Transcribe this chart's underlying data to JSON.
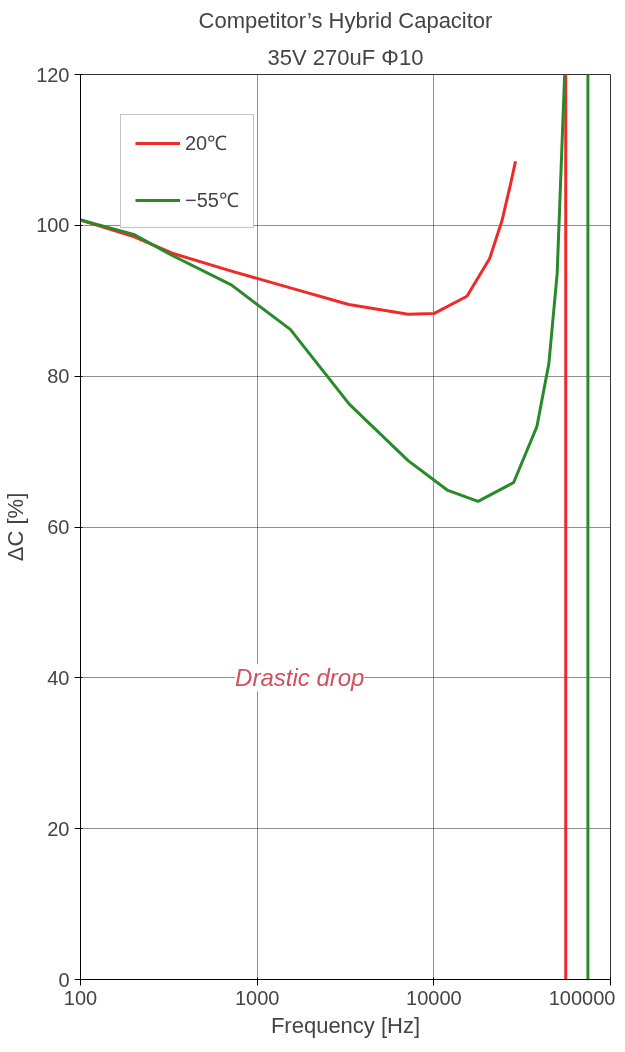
{
  "chart_data": {
    "type": "line",
    "title": "Competitor’s Hybrid Capacitor",
    "subtitle": "35V 270uF Φ10",
    "xlabel": "Frequency [Hz]",
    "ylabel": "ΔC [%]",
    "log": "x",
    "xlim": [
      100,
      100000
    ],
    "xticks": [
      100,
      1000,
      10000,
      100000
    ],
    "ylim": [
      0,
      120
    ],
    "yticks": [
      0,
      20,
      40,
      60,
      80,
      100,
      120
    ],
    "grid": true,
    "legend": "top left",
    "line_style": "solid",
    "marker": "none",
    "annotations": [
      "Drastic drop"
    ],
    "series": [
      {
        "name": "20℃",
        "color": "#ee2a2a",
        "x": [
          100,
          200,
          331,
          700,
          1540,
          3300,
          7150,
          10000,
          15400,
          20700,
          24300,
          27200,
          29000,
          40000,
          55800,
          55800
        ],
        "values": [
          100.7,
          98.5,
          96.3,
          94.0,
          91.7,
          89.5,
          88.2,
          88.3,
          90.6,
          95.6,
          100.6,
          105.5,
          108.5,
          null,
          120,
          0
        ]
      },
      {
        "name": "−55℃",
        "color": "#2a8a2a",
        "x": [
          100,
          200,
          331,
          714,
          1540,
          3320,
          7150,
          11900,
          17800,
          28300,
          38300,
          44800,
          49900,
          55000,
          65000,
          74500,
          74500
        ],
        "values": [
          100.7,
          98.8,
          96.0,
          92.1,
          86.2,
          76.3,
          68.8,
          64.9,
          63.4,
          65.9,
          73.3,
          81.7,
          93.6,
          120,
          null,
          120,
          0
        ]
      }
    ]
  }
}
